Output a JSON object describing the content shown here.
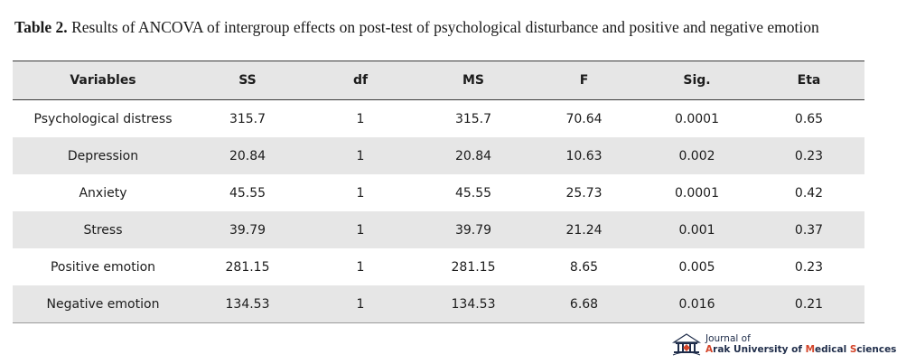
{
  "caption": {
    "label": "Table 2.",
    "text": " Results of ANCOVA of intergroup effects on post-test of psychological disturbance and positive and negative emotion"
  },
  "table": {
    "headers": [
      "Variables",
      "SS",
      "df",
      "MS",
      "F",
      "Sig.",
      "Eta"
    ],
    "rows": [
      [
        "Psychological distress",
        "315.7",
        "1",
        "315.7",
        "70.64",
        "0.0001",
        "0.65"
      ],
      [
        "Depression",
        "20.84",
        "1",
        "20.84",
        "10.63",
        "0.002",
        "0.23"
      ],
      [
        "Anxiety",
        "45.55",
        "1",
        "45.55",
        "25.73",
        "0.0001",
        "0.42"
      ],
      [
        "Stress",
        "39.79",
        "1",
        "39.79",
        "21.24",
        "0.001",
        "0.37"
      ],
      [
        "Positive emotion",
        "281.15",
        "1",
        "281.15",
        "8.65",
        "0.005",
        "0.23"
      ],
      [
        "Negative emotion",
        "134.53",
        "1",
        "134.53",
        "6.68",
        "0.016",
        "0.21"
      ]
    ]
  },
  "logo": {
    "line1": "Journal of",
    "line2_a": "A",
    "line2_b": "rak University of ",
    "line2_c": "M",
    "line2_d": "edical ",
    "line2_e": "S",
    "line2_f": "ciences",
    "accent_color": "#d4452a",
    "text_color": "#1f2d4a"
  }
}
